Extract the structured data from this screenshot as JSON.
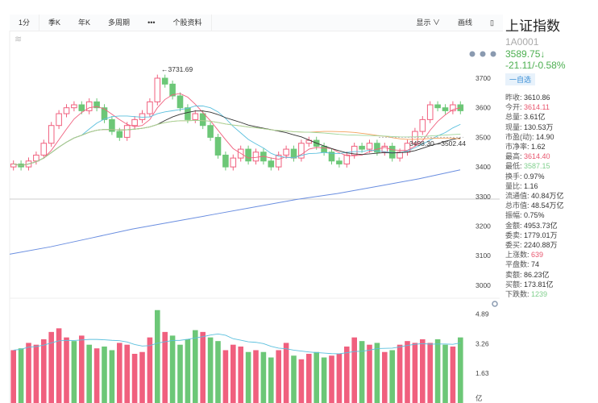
{
  "toolbar": {
    "tabs": [
      "1分",
      "季K",
      "年K",
      "多周期",
      "•••",
      "个股资料"
    ],
    "display": "显示 ∨",
    "draw": "画线"
  },
  "stock": {
    "name": "上证指数",
    "code": "1A0001",
    "price": "3589.75↓",
    "change": "-21.11/-0.58%",
    "watch": "一自选"
  },
  "stats": [
    {
      "label": "昨收",
      "value": "3610.86",
      "color": ""
    },
    {
      "label": "今开",
      "value": "3614.11",
      "color": "red"
    },
    {
      "label": "总量",
      "value": "3.61亿",
      "color": ""
    },
    {
      "label": "现量",
      "value": "130.53万",
      "color": ""
    },
    {
      "label": "市盈(动)",
      "value": "14.90",
      "color": ""
    },
    {
      "label": "市净率",
      "value": "1.62",
      "color": ""
    },
    {
      "label": "最高",
      "value": "3614.40",
      "color": "red"
    },
    {
      "label": "最低",
      "value": "3587.15",
      "color": "green"
    },
    {
      "label": "换手",
      "value": "0.97%",
      "color": ""
    },
    {
      "label": "量比",
      "value": "1.16",
      "color": ""
    },
    {
      "label": "流通值",
      "value": "40.84万亿",
      "color": ""
    },
    {
      "label": "总市值",
      "value": "48.54万亿",
      "color": ""
    },
    {
      "label": "振幅",
      "value": "0.75%",
      "color": ""
    },
    {
      "label": "金额",
      "value": "4953.73亿",
      "color": ""
    },
    {
      "label": "委卖",
      "value": "1779.01万",
      "color": ""
    },
    {
      "label": "委买",
      "value": "2240.88万",
      "color": ""
    },
    {
      "label": "上涨数",
      "value": "639",
      "color": "red"
    },
    {
      "label": "平盘数",
      "value": "74",
      "color": ""
    },
    {
      "label": "卖额",
      "value": "86.23亿",
      "color": ""
    },
    {
      "label": "买额",
      "value": "173.81亿",
      "color": ""
    },
    {
      "label": "下跌数",
      "value": "1239",
      "color": "green"
    }
  ],
  "chart_data": [
    {
      "type": "candlestick",
      "price_ticks": [
        "3700",
        "3600",
        "3500",
        "3400",
        "3300",
        "3200",
        "3100",
        "3000"
      ],
      "ylim": [
        2950,
        3760
      ],
      "annotations": {
        "high": "←3731.69",
        "range": "3498.30—3502.44"
      },
      "closes": [
        3410,
        3400,
        3420,
        3440,
        3480,
        3540,
        3580,
        3600,
        3610,
        3590,
        3620,
        3600,
        3560,
        3520,
        3500,
        3540,
        3560,
        3580,
        3620,
        3700,
        3680,
        3640,
        3600,
        3560,
        3580,
        3540,
        3500,
        3440,
        3400,
        3430,
        3460,
        3420,
        3450,
        3420,
        3400,
        3440,
        3460,
        3430,
        3480,
        3490,
        3470,
        3450,
        3420,
        3410,
        3440,
        3470,
        3460,
        3480,
        3450,
        3470,
        3430,
        3450,
        3480,
        3520,
        3560,
        3610,
        3600,
        3590,
        3610,
        3590
      ],
      "ma_long": [
        3105,
        3130,
        3160,
        3190,
        3215,
        3240,
        3265,
        3290,
        3310,
        3335,
        3360,
        3390
      ],
      "colors": {
        "up": "#f0607e",
        "down": "#6cc777",
        "ma5": "#f0607e",
        "ma10": "#5bc0de",
        "ma20": "#333333",
        "ma60": "#f3a15b",
        "ma120": "#9fd69a",
        "ma250": "#6a8ee0"
      }
    },
    {
      "type": "bar",
      "unit": "亿",
      "volume_ticks": [
        "4.89",
        "3.26",
        "1.63"
      ],
      "ylim": [
        0,
        5.2
      ],
      "values": [
        2.9,
        3.0,
        3.3,
        3.2,
        3.5,
        3.9,
        4.1,
        3.6,
        3.4,
        3.7,
        3.2,
        3.0,
        3.1,
        2.9,
        3.3,
        3.2,
        2.7,
        2.8,
        3.6,
        5.1,
        3.9,
        3.7,
        3.2,
        3.5,
        4.0,
        3.9,
        3.6,
        3.4,
        2.9,
        3.2,
        3.1,
        2.8,
        2.9,
        2.8,
        2.5,
        2.9,
        3.3,
        2.6,
        2.4,
        2.7,
        2.8,
        2.5,
        2.6,
        2.7,
        3.1,
        3.6,
        3.4,
        3.2,
        3.3,
        2.8,
        2.9,
        3.2,
        3.4,
        3.3,
        3.5,
        3.3,
        3.5,
        3.2,
        3.1,
        3.6
      ],
      "up": [
        1,
        0,
        1,
        1,
        1,
        1,
        1,
        1,
        0,
        1,
        0,
        1,
        0,
        0,
        1,
        1,
        1,
        1,
        1,
        0,
        1,
        0,
        0,
        0,
        0,
        1,
        0,
        0,
        1,
        1,
        1,
        0,
        1,
        0,
        0,
        1,
        1,
        0,
        1,
        1,
        0,
        0,
        1,
        1,
        1,
        1,
        0,
        1,
        0,
        1,
        0,
        1,
        1,
        1,
        1,
        1,
        0,
        0,
        1,
        0
      ]
    }
  ]
}
